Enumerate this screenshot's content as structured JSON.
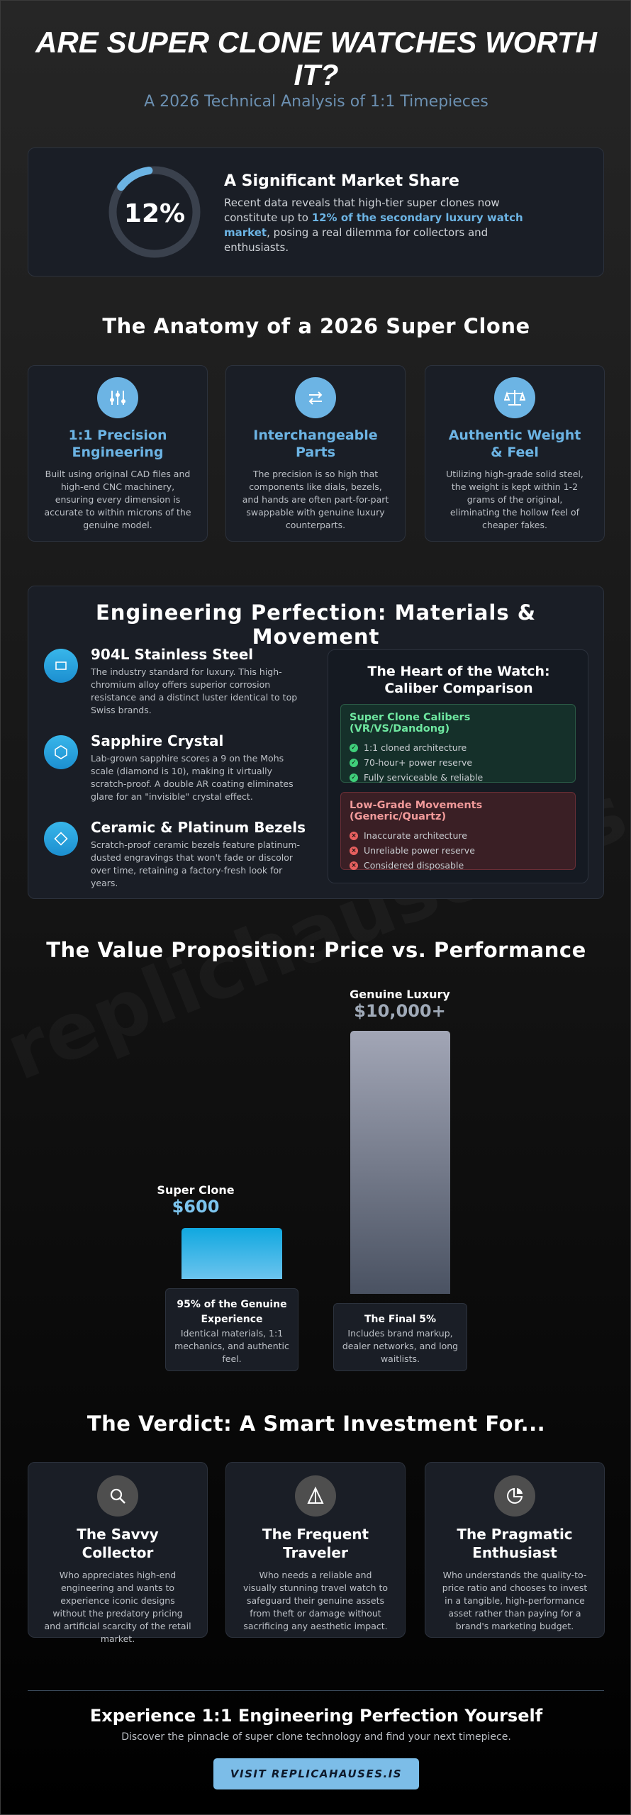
{
  "watermark": "replichauses.is",
  "header": {
    "title": "ARE SUPER CLONE WATCHES WORTH IT?",
    "subtitle": "A 2026 Technical Analysis of 1:1 Timepieces"
  },
  "market_share": {
    "stat": "12%",
    "heading": "A Significant Market Share",
    "text_before": "Recent data reveals that high-tier super clones now constitute up to ",
    "highlight": "12% of the secondary luxury watch market",
    "text_after": ", posing a real dilemma for collectors and enthusiasts."
  },
  "anatomy": {
    "heading": "The Anatomy of a 2026 Super Clone",
    "cards": [
      {
        "title": "1:1 Precision Engineering",
        "text": "Built using original CAD files and high-end CNC machinery, ensuring every dimension is accurate to within microns of the genuine model."
      },
      {
        "title": "Interchangeable Parts",
        "text": "The precision is so high that components like dials, bezels, and hands are often part-for-part swappable with genuine luxury counterparts."
      },
      {
        "title": "Authentic Weight & Feel",
        "text": "Utilizing high-grade solid steel, the weight is kept within 1-2 grams of the original, eliminating the hollow feel of cheaper fakes."
      }
    ]
  },
  "engineering": {
    "heading": "Engineering Perfection: Materials & Movement",
    "features": [
      {
        "title": "904L Stainless Steel",
        "text": "The industry standard for luxury. This high-chromium alloy offers superior corrosion resistance and a distinct luster identical to top Swiss brands."
      },
      {
        "title": "Sapphire Crystal",
        "text": "Lab-grown sapphire scores a 9 on the Mohs scale (diamond is 10), making it virtually scratch-proof. A double AR coating eliminates glare for an \"invisible\" crystal effect."
      },
      {
        "title": "Ceramic & Platinum Bezels",
        "text": "Scratch-proof ceramic bezels feature platinum-dusted engravings that won't fade or discolor over time, retaining a factory-fresh look for years."
      }
    ],
    "caliber": {
      "heading": "The Heart of the Watch: Caliber Comparison",
      "good": {
        "title": "Super Clone Calibers (VR/VS/Dandong)",
        "items": [
          "1:1 cloned architecture",
          "70-hour+ power reserve",
          "Fully serviceable & reliable"
        ]
      },
      "bad": {
        "title": "Low-Grade Movements (Generic/Quartz)",
        "items": [
          "Inaccurate architecture",
          "Unreliable power reserve",
          "Considered disposable"
        ]
      }
    }
  },
  "value": {
    "heading": "The Value Proposition: Price vs. Performance",
    "clone": {
      "name": "Super Clone",
      "price": "$600",
      "caption_title": "95% of the Genuine Experience",
      "caption_text": "Identical materials, 1:1 mechanics, and authentic feel."
    },
    "genuine": {
      "name": "Genuine Luxury",
      "price": "$10,000+",
      "caption_title": "The Final 5%",
      "caption_text": "Includes brand markup, dealer networks, and long waitlists."
    }
  },
  "verdict": {
    "heading": "The Verdict: A Smart Investment For...",
    "cards": [
      {
        "title": "The Savvy Collector",
        "text": "Who appreciates high-end engineering and wants to experience iconic designs without the predatory pricing and artificial scarcity of the retail market."
      },
      {
        "title": "The Frequent Traveler",
        "text": "Who needs a reliable and visually stunning travel watch to safeguard their genuine assets from theft or damage without sacrificing any aesthetic impact."
      },
      {
        "title": "The Pragmatic Enthusiast",
        "text": "Who understands the quality-to-price ratio and chooses to invest in a tangible, high-performance asset rather than paying for a brand's marketing budget."
      }
    ]
  },
  "cta": {
    "heading": "Experience 1:1 Engineering Perfection Yourself",
    "text": "Discover the pinnacle of super clone technology and find your next timepiece.",
    "button": "VISIT REPLICAHAUSES.IS"
  }
}
